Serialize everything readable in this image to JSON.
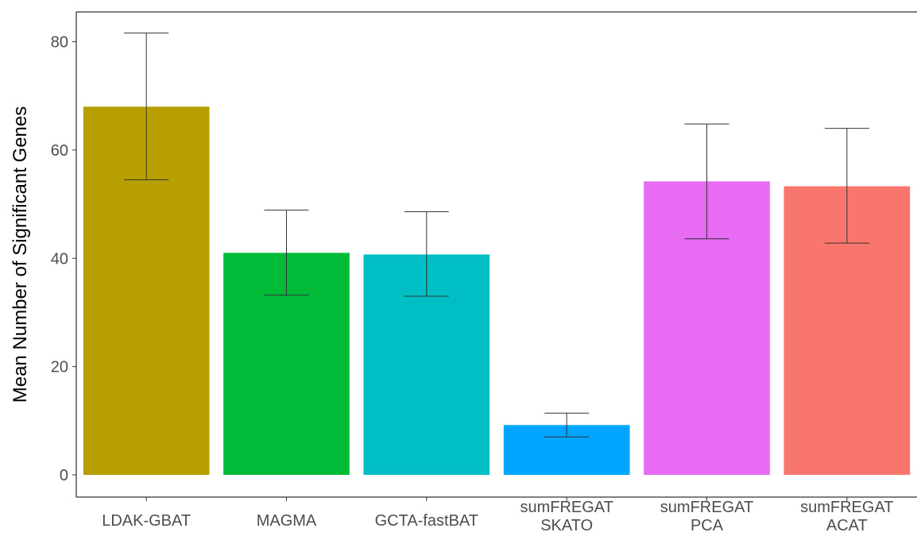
{
  "chart_data": {
    "type": "bar",
    "categories": [
      [
        "LDAK-GBAT"
      ],
      [
        "MAGMA"
      ],
      [
        "GCTA-fastBAT"
      ],
      [
        "sumFREGAT",
        "SKATO"
      ],
      [
        "sumFREGAT",
        "PCA"
      ],
      [
        "sumFREGAT",
        "ACAT"
      ]
    ],
    "values": [
      68.0,
      41.0,
      40.7,
      9.2,
      54.2,
      53.3
    ],
    "error_lower": [
      54.5,
      33.2,
      33.0,
      7.0,
      43.6,
      42.8
    ],
    "error_upper": [
      81.6,
      48.9,
      48.6,
      11.4,
      64.8,
      64.0
    ],
    "colors": [
      "#B79F00",
      "#00BA38",
      "#00BFC4",
      "#00A5FF",
      "#E76BF3",
      "#F8766D"
    ],
    "xlabel": "",
    "ylabel": "Mean Number of Significant Genes",
    "ylim": [
      0,
      85
    ],
    "yticks": [
      0,
      20,
      40,
      60,
      80
    ],
    "grid": false
  }
}
